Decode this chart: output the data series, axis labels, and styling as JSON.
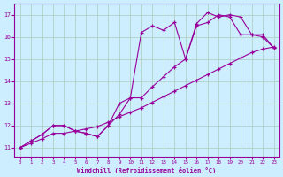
{
  "xlabel": "Windchill (Refroidissement éolien,°C)",
  "bg_color": "#cceeff",
  "line_color": "#990099",
  "grid_color": "#aaccbb",
  "xlim": [
    -0.5,
    23.5
  ],
  "ylim": [
    10.6,
    17.5
  ],
  "yticks": [
    11,
    12,
    13,
    14,
    15,
    16,
    17
  ],
  "xticks": [
    0,
    1,
    2,
    3,
    4,
    5,
    6,
    7,
    8,
    9,
    10,
    11,
    12,
    13,
    14,
    15,
    16,
    17,
    18,
    19,
    20,
    21,
    22,
    23
  ],
  "line1_x": [
    0,
    1,
    2,
    3,
    4,
    5,
    6,
    7,
    8,
    9,
    10,
    11,
    12,
    13,
    14,
    15,
    16,
    17,
    18,
    19,
    20,
    21,
    22,
    23
  ],
  "line1_y": [
    11.0,
    11.2,
    11.4,
    11.65,
    11.65,
    11.75,
    11.85,
    11.95,
    12.15,
    12.4,
    12.6,
    12.8,
    13.05,
    13.3,
    13.55,
    13.8,
    14.05,
    14.3,
    14.55,
    14.8,
    15.05,
    15.3,
    15.45,
    15.55
  ],
  "line2_x": [
    0,
    1,
    2,
    3,
    4,
    5,
    6,
    7,
    8,
    9,
    10,
    11,
    12,
    13,
    14,
    15,
    16,
    17,
    18,
    19,
    20,
    21,
    22,
    23
  ],
  "line2_y": [
    11.0,
    11.3,
    11.6,
    12.0,
    12.0,
    11.75,
    11.65,
    11.5,
    12.0,
    12.5,
    13.25,
    13.25,
    13.75,
    14.2,
    14.65,
    15.0,
    16.5,
    16.65,
    17.0,
    16.9,
    16.1,
    16.1,
    16.0,
    15.5
  ],
  "line3_x": [
    0,
    1,
    2,
    3,
    4,
    5,
    6,
    7,
    8,
    9,
    10,
    11,
    12,
    13,
    14,
    15,
    16,
    17,
    18,
    19,
    20,
    21,
    22,
    23
  ],
  "line3_y": [
    11.0,
    11.3,
    11.6,
    12.0,
    12.0,
    11.75,
    11.65,
    11.5,
    12.0,
    13.0,
    13.25,
    16.2,
    16.5,
    16.3,
    16.65,
    15.0,
    16.6,
    17.1,
    16.9,
    17.0,
    16.9,
    16.1,
    16.1,
    15.5
  ]
}
